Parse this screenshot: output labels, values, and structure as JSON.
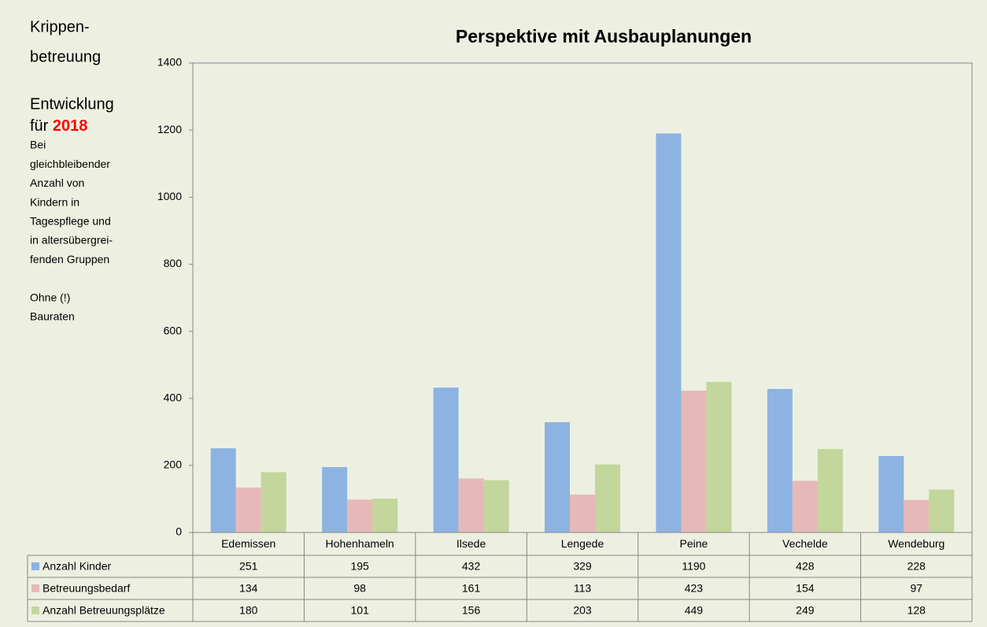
{
  "chart_data": {
    "type": "bar",
    "title": "Perspektive mit Ausbauplanungen",
    "categories": [
      "Edemissen",
      "Hohenhameln",
      "Ilsede",
      "Lengede",
      "Peine",
      "Vechelde",
      "Wendeburg"
    ],
    "series": [
      {
        "name": "Anzahl Kinder",
        "color": "#8db3e2",
        "values": [
          251,
          195,
          432,
          329,
          1190,
          428,
          228
        ]
      },
      {
        "name": "Betreuungsbedarf",
        "color": "#e6b9b8",
        "values": [
          134,
          98,
          161,
          113,
          423,
          154,
          97
        ]
      },
      {
        "name": "Anzahl Betreuungsplätze",
        "color": "#c3d69b",
        "values": [
          180,
          101,
          156,
          203,
          449,
          249,
          128
        ]
      }
    ],
    "ylim": [
      0,
      1400
    ],
    "yticks": [
      0,
      200,
      400,
      600,
      800,
      1000,
      1200,
      1400
    ],
    "grid": false,
    "data_table": true
  },
  "sidebar": {
    "title_lines": [
      "Krippen-",
      "betreuung"
    ],
    "subtitle": "Entwicklung",
    "year_prefix": "für",
    "year": "2018",
    "note_lines": [
      "Bei",
      "gleichbleibender",
      "Anzahl von",
      "Kindern in",
      "Tagespflege und",
      "in altersübergrei-",
      "fenden Gruppen"
    ],
    "footnote_lines": [
      "Ohne (!)",
      "Bauraten"
    ]
  }
}
